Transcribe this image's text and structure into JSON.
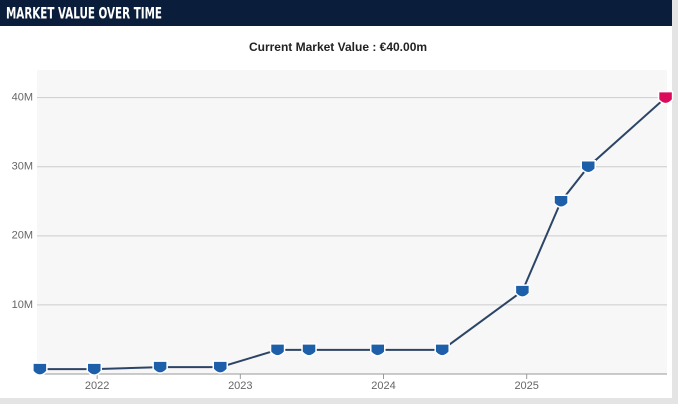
{
  "chart_data": {
    "type": "line",
    "title": "MARKET VALUE OVER TIME",
    "subtitle": "Current Market Value : €40.00m",
    "x": [
      2021.6,
      2021.98,
      2022.44,
      2022.86,
      2023.26,
      2023.48,
      2023.96,
      2024.41,
      2024.97,
      2025.24,
      2025.43,
      2025.97
    ],
    "values": [
      0.7,
      0.7,
      1,
      1,
      3.5,
      3.5,
      3.5,
      3.5,
      12,
      25,
      30,
      40
    ],
    "color": "#2c4566",
    "marker_colors": [
      "#1d5fa8",
      "#1d5fa8",
      "#1d5fa8",
      "#1d5fa8",
      "#1d5fa8",
      "#1d5fa8",
      "#1d5fa8",
      "#1d5fa8",
      "#1d5fa8",
      "#1d5fa8",
      "#1d5fa8",
      "#dc0a5a"
    ],
    "xlim": [
      2021.58,
      2025.98
    ],
    "xticks": [
      2022,
      2023,
      2024,
      2025
    ],
    "ylim": [
      0,
      44
    ],
    "yticks": [
      {
        "value": 10,
        "label": "10M"
      },
      {
        "value": 20,
        "label": "20M"
      },
      {
        "value": 30,
        "label": "30M"
      },
      {
        "value": 40,
        "label": "40M"
      }
    ],
    "grid": true
  }
}
